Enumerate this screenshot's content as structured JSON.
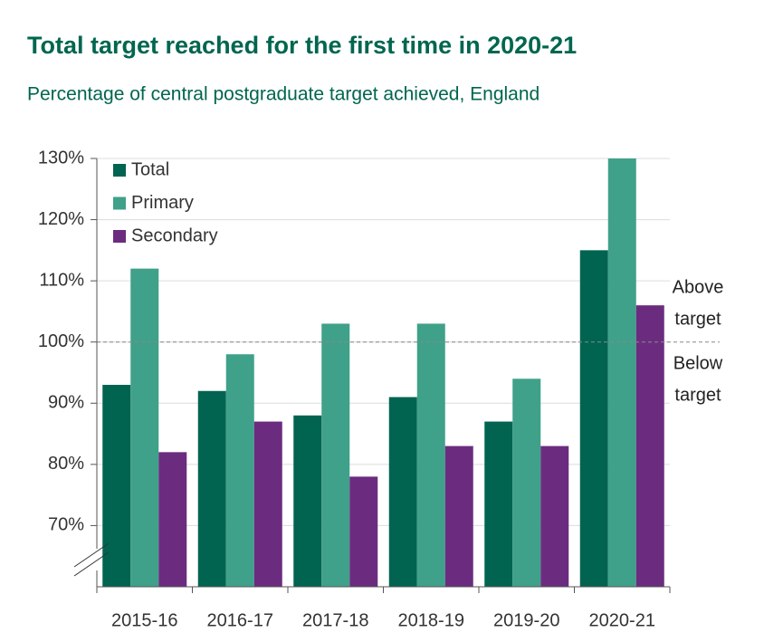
{
  "chart_data": {
    "type": "bar",
    "title": "Total target reached for the first time in 2020-21",
    "subtitle": "Percentage of central postgraduate target achieved, England",
    "categories": [
      "2015-16",
      "2016-17",
      "2017-18",
      "2018-19",
      "2019-20",
      "2020-21"
    ],
    "series": [
      {
        "name": "Total",
        "color": "#006450",
        "values": [
          93,
          92,
          88,
          91,
          87,
          115
        ]
      },
      {
        "name": "Primary",
        "color": "#3fa18a",
        "values": [
          112,
          98,
          103,
          103,
          94,
          130
        ]
      },
      {
        "name": "Secondary",
        "color": "#6b2c7f",
        "values": [
          82,
          87,
          78,
          83,
          83,
          106
        ]
      }
    ],
    "ylim": [
      60,
      130
    ],
    "yticks": [
      {
        "value": 70,
        "label": "70%"
      },
      {
        "value": 80,
        "label": "80%"
      },
      {
        "value": 90,
        "label": "90%"
      },
      {
        "value": 100,
        "label": "100%"
      },
      {
        "value": 110,
        "label": "110%"
      },
      {
        "value": 120,
        "label": "120%"
      },
      {
        "value": 130,
        "label": "130%"
      }
    ],
    "grid": true,
    "legend": "top-left",
    "reference_line": 100,
    "annotations": [
      [
        "Above",
        "target"
      ],
      [
        "Below",
        "target"
      ]
    ]
  }
}
